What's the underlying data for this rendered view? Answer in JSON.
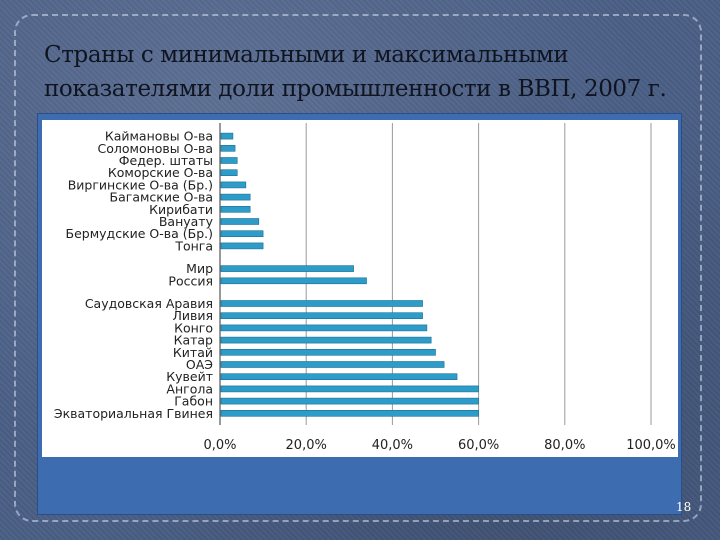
{
  "slide": {
    "title_line1": "Страны с минимальными и максимальными",
    "title_line2": "показателями доли промышленности в ВВП, 2007 г.",
    "page_number": "18"
  },
  "chart_data": {
    "type": "bar",
    "orientation": "horizontal",
    "title": "",
    "xlabel": "",
    "ylabel": "",
    "xlim": [
      0,
      100
    ],
    "x_ticks": [
      "0,0%",
      "20,0%",
      "40,0%",
      "60,0%",
      "80,0%",
      "100,0%"
    ],
    "grid": true,
    "bar_color": "#2e9cc9",
    "groups": [
      {
        "categories": [
          "Каймановы О-ва",
          "Соломоновы О-ва",
          "Федер. штаты",
          "Коморские О-ва",
          "Виргинские О-ва (Бр.)",
          "Багамские О-ва",
          "Кирибати",
          "Вануату",
          "Бермудские О-ва (Бр.)",
          "Тонга"
        ],
        "values": [
          3,
          3.5,
          4,
          4,
          6,
          7,
          7,
          9,
          10,
          10
        ]
      },
      {
        "categories": [
          "Мир",
          "Россия"
        ],
        "values": [
          31,
          34
        ]
      },
      {
        "categories": [
          "Саудовская Аравия",
          "Ливия",
          "Конго",
          "Катар",
          "Китай",
          "ОАЭ",
          "Кувейт",
          "Ангола",
          "Габон",
          "Экваториальная Гвинея"
        ],
        "values": [
          47,
          47,
          48,
          49,
          50,
          52,
          55,
          60,
          60,
          60
        ]
      }
    ]
  }
}
